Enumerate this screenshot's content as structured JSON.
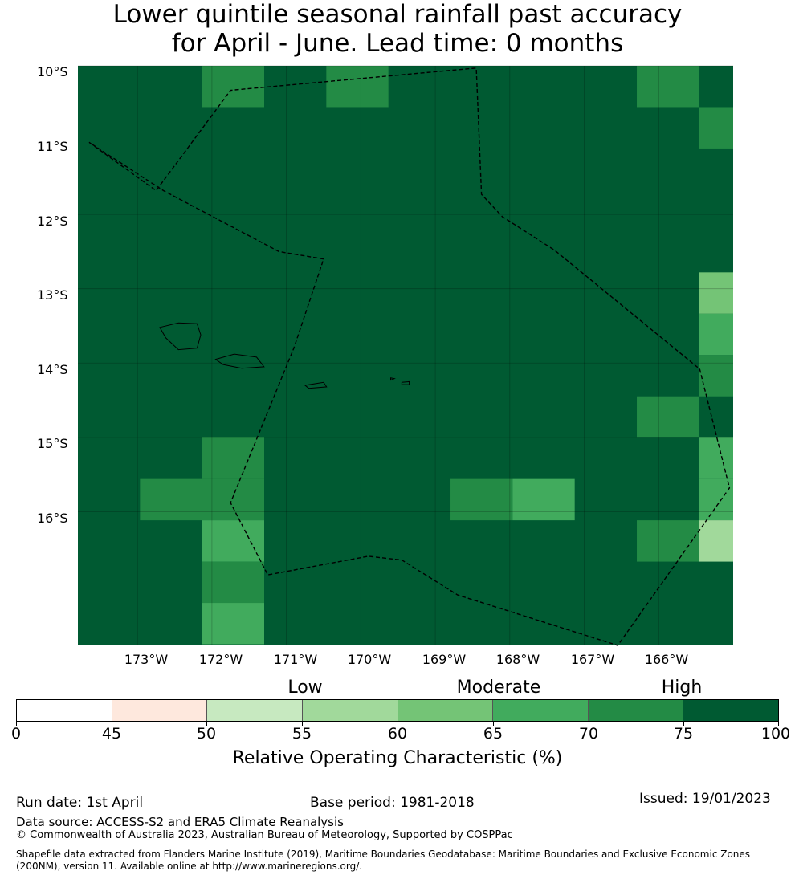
{
  "title_line1": "Lower quintile seasonal rainfall past accuracy",
  "title_line2": "for April - June. Lead time: 0 months",
  "map": {
    "lat_labels": [
      "10°S",
      "11°S",
      "12°S",
      "13°S",
      "14°S",
      "15°S",
      "16°S"
    ],
    "lon_labels": [
      "173°W",
      "172°W",
      "171°W",
      "170°W",
      "169°W",
      "168°W",
      "167°W",
      "166°W"
    ],
    "extent": {
      "lon_min": -173.9,
      "lon_max": -165.1,
      "lat_min": -17.8,
      "lat_max": -10.0
    },
    "grid_lons": [
      -173.1,
      -172.1,
      -171.1,
      -170.1,
      -169.1,
      -168.1,
      -167.1,
      -166.1
    ],
    "grid_lats": [
      -10.0,
      -11.0,
      -12.0,
      -13.0,
      -14.0,
      -15.0,
      -16.0
    ],
    "cell_grid": {
      "lon_start": -173.9,
      "lat_start": -10.0,
      "cell_lon": 0.834,
      "cell_lat": 0.556,
      "default_class": "75-100",
      "cells": [
        {
          "col": 2,
          "row": 0,
          "class": "70-75"
        },
        {
          "col": 4,
          "row": 0,
          "class": "70-75"
        },
        {
          "col": 9,
          "row": 0,
          "class": "70-75"
        },
        {
          "col": 10,
          "row": 1,
          "class": "70-75"
        },
        {
          "col": 10,
          "row": 5,
          "class": "60-65"
        },
        {
          "col": 10,
          "row": 6,
          "class": "65-70"
        },
        {
          "col": 10,
          "row": 7,
          "class": "70-75"
        },
        {
          "col": 9,
          "row": 8,
          "class": "70-75"
        },
        {
          "col": 2,
          "row": 9,
          "class": "70-75"
        },
        {
          "col": 10,
          "row": 9,
          "class": "65-70"
        },
        {
          "col": 1,
          "row": 10,
          "class": "70-75"
        },
        {
          "col": 2,
          "row": 10,
          "class": "70-75"
        },
        {
          "col": 6,
          "row": 10,
          "class": "70-75"
        },
        {
          "col": 7,
          "row": 10,
          "class": "65-70"
        },
        {
          "col": 10,
          "row": 10,
          "class": "65-70"
        },
        {
          "col": 2,
          "row": 11,
          "class": "65-70"
        },
        {
          "col": 9,
          "row": 11,
          "class": "70-75"
        },
        {
          "col": 10,
          "row": 11,
          "class": "55-60"
        },
        {
          "col": 2,
          "row": 12,
          "class": "70-75"
        },
        {
          "col": 2,
          "row": 13,
          "class": "65-70"
        }
      ]
    },
    "eez_boundary": [
      [
        -173.75,
        -11.03
      ],
      [
        -172.85,
        -11.68
      ],
      [
        -171.85,
        -10.33
      ],
      [
        -168.55,
        -10.03
      ],
      [
        -168.48,
        -11.73
      ],
      [
        -168.2,
        -12.03
      ],
      [
        -167.5,
        -12.48
      ],
      [
        -165.55,
        -14.08
      ],
      [
        -165.15,
        -15.68
      ],
      [
        -166.65,
        -17.8
      ],
      [
        -168.8,
        -17.12
      ],
      [
        -169.55,
        -16.65
      ],
      [
        -170.0,
        -16.6
      ],
      [
        -171.35,
        -16.85
      ],
      [
        -171.85,
        -15.88
      ],
      [
        -171.0,
        -13.8
      ],
      [
        -170.6,
        -12.6
      ],
      [
        -171.2,
        -12.5
      ],
      [
        -172.75,
        -11.68
      ],
      [
        -173.75,
        -11.03
      ]
    ],
    "islands": [
      [
        [
          -172.8,
          -13.52
        ],
        [
          -172.55,
          -13.46
        ],
        [
          -172.3,
          -13.47
        ],
        [
          -172.25,
          -13.62
        ],
        [
          -172.3,
          -13.8
        ],
        [
          -172.55,
          -13.82
        ],
        [
          -172.72,
          -13.66
        ]
      ],
      [
        [
          -172.05,
          -13.95
        ],
        [
          -171.8,
          -13.88
        ],
        [
          -171.5,
          -13.92
        ],
        [
          -171.4,
          -14.05
        ],
        [
          -171.7,
          -14.07
        ],
        [
          -171.95,
          -14.02
        ]
      ],
      [
        [
          -170.85,
          -14.3
        ],
        [
          -170.6,
          -14.26
        ],
        [
          -170.56,
          -14.32
        ],
        [
          -170.8,
          -14.34
        ]
      ],
      [
        [
          -169.7,
          -14.2
        ],
        [
          -169.65,
          -14.21
        ],
        [
          -169.7,
          -14.23
        ]
      ],
      [
        [
          -169.55,
          -14.26
        ],
        [
          -169.45,
          -14.25
        ],
        [
          -169.45,
          -14.29
        ],
        [
          -169.55,
          -14.29
        ]
      ]
    ]
  },
  "legend": {
    "categories": [
      "Low",
      "Moderate",
      "High"
    ],
    "bins": [
      {
        "range": "0-45",
        "color": "#ffffff"
      },
      {
        "range": "45-50",
        "color": "#fee8dd"
      },
      {
        "range": "50-55",
        "color": "#c7e9c0"
      },
      {
        "range": "55-60",
        "color": "#a1d99b"
      },
      {
        "range": "60-65",
        "color": "#74c476"
      },
      {
        "range": "65-70",
        "color": "#41ab5d"
      },
      {
        "range": "70-75",
        "color": "#238b45"
      },
      {
        "range": "75-100",
        "color": "#005a32"
      }
    ],
    "ticks": [
      "0",
      "45",
      "50",
      "55",
      "60",
      "65",
      "70",
      "75",
      "100"
    ],
    "label": "Relative Operating Characteristic (%)"
  },
  "footer": {
    "run_date": "Run date: 1st April",
    "base_period": "Base period: 1981-2018",
    "issued": "Issued: 19/01/2023",
    "data_source": "Data source: ACCESS-S2 and ERA5 Climate Reanalysis",
    "copyright": "© Commonwealth of Australia 2023, Australian Bureau of Meteorology, Supported by COSPPac",
    "shapefile_line1": "Shapefile data extracted from Flanders Marine Institute (2019), Maritime Boundaries Geodatabase: Maritime Boundaries and Exclusive Economic Zones",
    "shapefile_line2": "(200NM), version 11. Available online at http://www.marineregions.org/."
  }
}
